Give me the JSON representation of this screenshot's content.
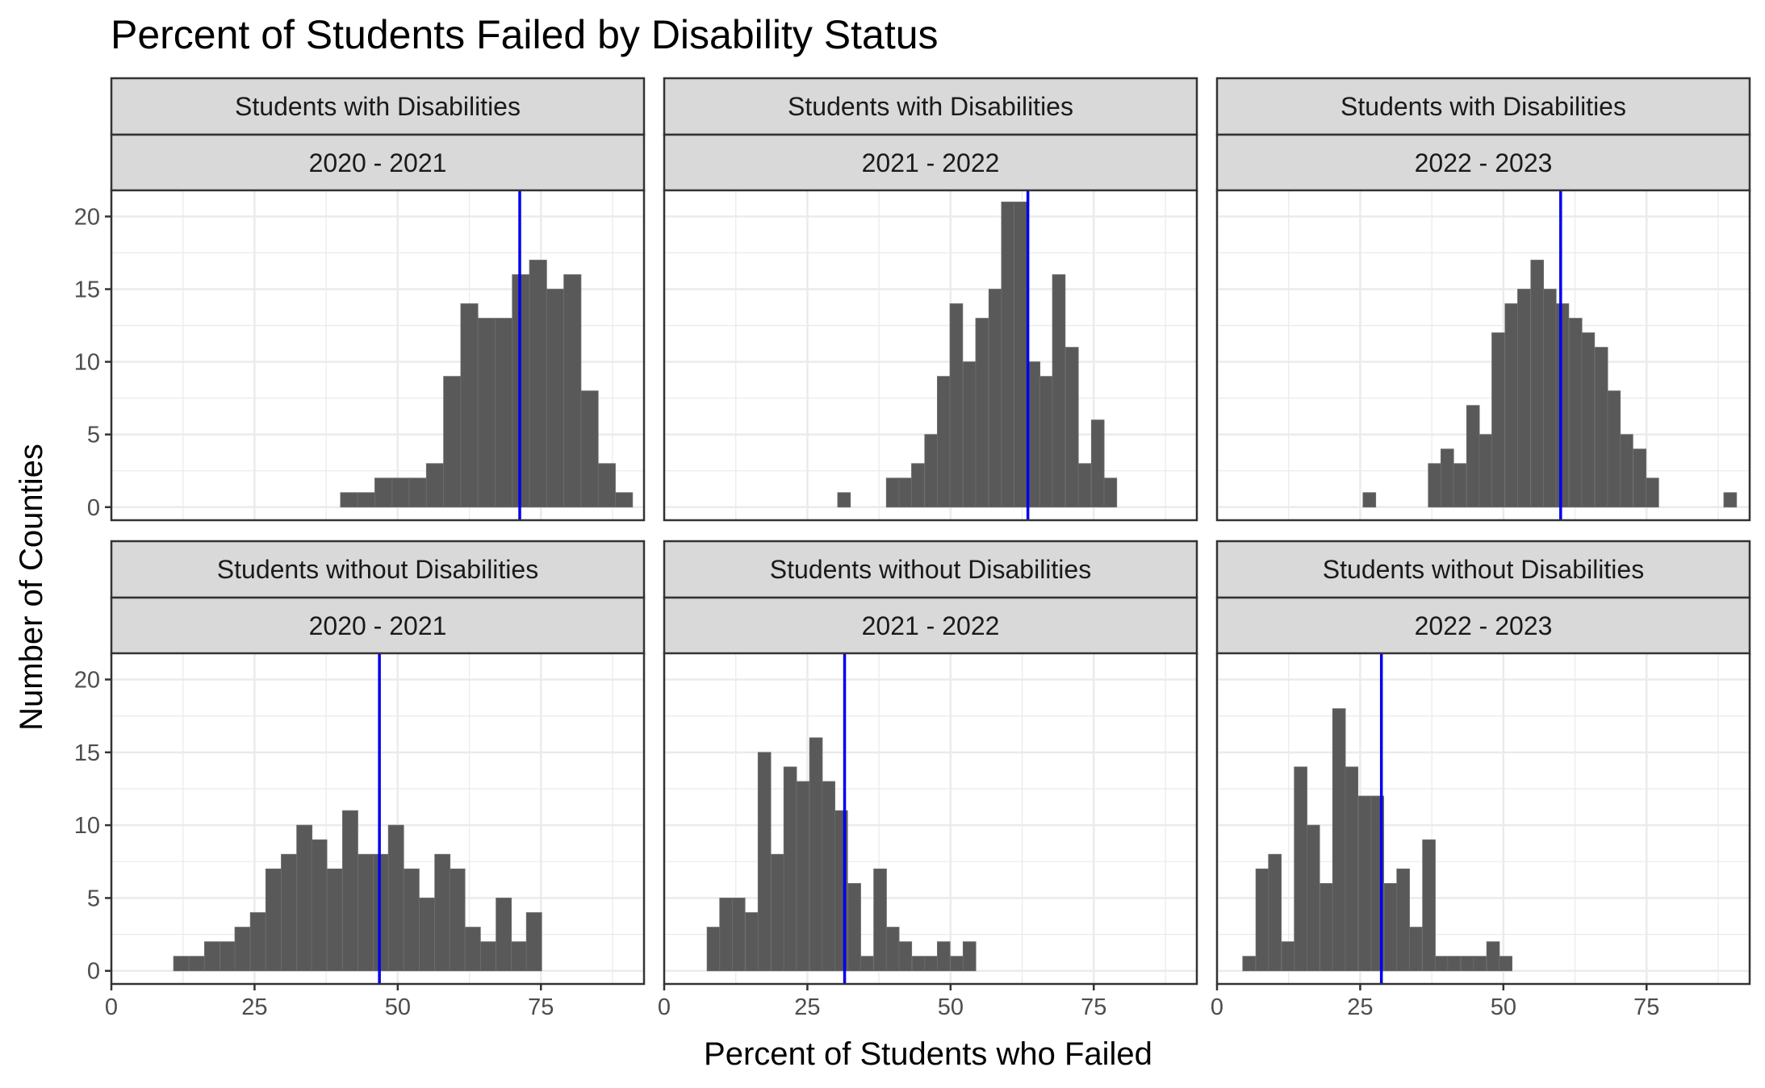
{
  "title": "Percent of Students Failed by Disability Status",
  "xlabel": "Percent of Students who Failed",
  "ylabel": "Number of Counties",
  "colors": {
    "bar": "#595959",
    "mean_line": "#0000ee",
    "strip_fill": "#d9d9d9",
    "grid": "#ebebeb",
    "border": "#333333"
  },
  "chart_data": [
    {
      "type": "bar",
      "group": "Students with Disabilities",
      "year": "2020 - 2021",
      "bin_width": 3,
      "mean": 71.3,
      "bins": [
        [
          41.5,
          1
        ],
        [
          44.5,
          1
        ],
        [
          47.5,
          2
        ],
        [
          50.5,
          2
        ],
        [
          53.5,
          2
        ],
        [
          56.5,
          3
        ],
        [
          59.5,
          9
        ],
        [
          62.5,
          14
        ],
        [
          65.5,
          13
        ],
        [
          68.5,
          13
        ],
        [
          71.5,
          16
        ],
        [
          74.5,
          17
        ],
        [
          77.5,
          15
        ],
        [
          80.5,
          16
        ],
        [
          83.5,
          8
        ],
        [
          86.5,
          3
        ],
        [
          89.5,
          1
        ]
      ]
    },
    {
      "type": "bar",
      "group": "Students with Disabilities",
      "year": "2021 - 2022",
      "bin_width": 2.23,
      "mean": 63.5,
      "bins": [
        [
          31.4,
          1
        ],
        [
          39.9,
          2
        ],
        [
          42.1,
          2
        ],
        [
          44.3,
          3
        ],
        [
          46.6,
          5
        ],
        [
          48.8,
          9
        ],
        [
          51.0,
          14
        ],
        [
          53.3,
          10
        ],
        [
          55.5,
          13
        ],
        [
          57.8,
          15
        ],
        [
          60.0,
          21
        ],
        [
          62.2,
          21
        ],
        [
          64.5,
          10
        ],
        [
          66.7,
          9
        ],
        [
          68.9,
          16
        ],
        [
          71.2,
          11
        ],
        [
          73.4,
          3
        ],
        [
          75.7,
          6
        ],
        [
          77.9,
          2
        ]
      ]
    },
    {
      "type": "bar",
      "group": "Students with Disabilities",
      "year": "2022 - 2023",
      "bin_width": 2.23,
      "mean": 60.0,
      "bins": [
        [
          26.6,
          1
        ],
        [
          38.0,
          3
        ],
        [
          40.2,
          4
        ],
        [
          42.4,
          3
        ],
        [
          44.7,
          7
        ],
        [
          46.9,
          5
        ],
        [
          49.1,
          12
        ],
        [
          51.4,
          14
        ],
        [
          53.6,
          15
        ],
        [
          55.9,
          17
        ],
        [
          58.1,
          15
        ],
        [
          60.3,
          14
        ],
        [
          62.6,
          13
        ],
        [
          64.8,
          12
        ],
        [
          67.1,
          11
        ],
        [
          69.3,
          8
        ],
        [
          71.5,
          5
        ],
        [
          73.8,
          4
        ],
        [
          76.0,
          2
        ],
        [
          89.6,
          1
        ]
      ]
    },
    {
      "type": "bar",
      "group": "Students without Disabilities",
      "year": "2020 - 2021",
      "bin_width": 2.68,
      "mean": 46.8,
      "bins": [
        [
          12.2,
          1
        ],
        [
          14.9,
          1
        ],
        [
          17.6,
          2
        ],
        [
          20.3,
          2
        ],
        [
          22.9,
          3
        ],
        [
          25.6,
          4
        ],
        [
          28.3,
          7
        ],
        [
          31.0,
          8
        ],
        [
          33.7,
          10
        ],
        [
          36.3,
          9
        ],
        [
          39.0,
          7
        ],
        [
          41.7,
          11
        ],
        [
          44.4,
          8
        ],
        [
          47.1,
          8
        ],
        [
          49.7,
          10
        ],
        [
          52.4,
          7
        ],
        [
          55.1,
          5
        ],
        [
          57.8,
          8
        ],
        [
          60.4,
          7
        ],
        [
          63.1,
          3
        ],
        [
          65.8,
          2
        ],
        [
          68.5,
          5
        ],
        [
          71.2,
          2
        ],
        [
          73.8,
          4
        ]
      ]
    },
    {
      "type": "bar",
      "group": "Students without Disabilities",
      "year": "2021 - 2022",
      "bin_width": 2.23,
      "mean": 31.5,
      "bins": [
        [
          8.6,
          3
        ],
        [
          10.8,
          5
        ],
        [
          13.0,
          5
        ],
        [
          15.3,
          4
        ],
        [
          17.5,
          15
        ],
        [
          19.8,
          8
        ],
        [
          22.0,
          14
        ],
        [
          24.2,
          13
        ],
        [
          26.5,
          16
        ],
        [
          28.7,
          13
        ],
        [
          30.9,
          11
        ],
        [
          33.2,
          6
        ],
        [
          35.4,
          1
        ],
        [
          37.7,
          7
        ],
        [
          39.9,
          3
        ],
        [
          42.1,
          2
        ],
        [
          44.4,
          1
        ],
        [
          46.6,
          1
        ],
        [
          48.8,
          2
        ],
        [
          51.1,
          1
        ],
        [
          53.3,
          2
        ]
      ]
    },
    {
      "type": "bar",
      "group": "Students without Disabilities",
      "year": "2022 - 2023",
      "bin_width": 2.23,
      "mean": 28.7,
      "bins": [
        [
          5.6,
          1
        ],
        [
          7.9,
          7
        ],
        [
          10.1,
          8
        ],
        [
          12.4,
          2
        ],
        [
          14.6,
          14
        ],
        [
          16.8,
          10
        ],
        [
          19.1,
          6
        ],
        [
          21.3,
          18
        ],
        [
          23.5,
          14
        ],
        [
          25.8,
          12
        ],
        [
          28.0,
          12
        ],
        [
          30.3,
          6
        ],
        [
          32.5,
          7
        ],
        [
          34.7,
          3
        ],
        [
          37.0,
          9
        ],
        [
          39.2,
          1
        ],
        [
          41.4,
          1
        ],
        [
          43.7,
          1
        ],
        [
          45.9,
          1
        ],
        [
          48.2,
          2
        ],
        [
          50.4,
          1
        ]
      ]
    }
  ],
  "axes": {
    "xlim": [
      0,
      93
    ],
    "ylim": [
      -0.9,
      21.8
    ],
    "x_ticks": [
      0,
      25,
      50,
      75
    ],
    "y_ticks": [
      0,
      5,
      10,
      15,
      20
    ],
    "grid": true
  }
}
